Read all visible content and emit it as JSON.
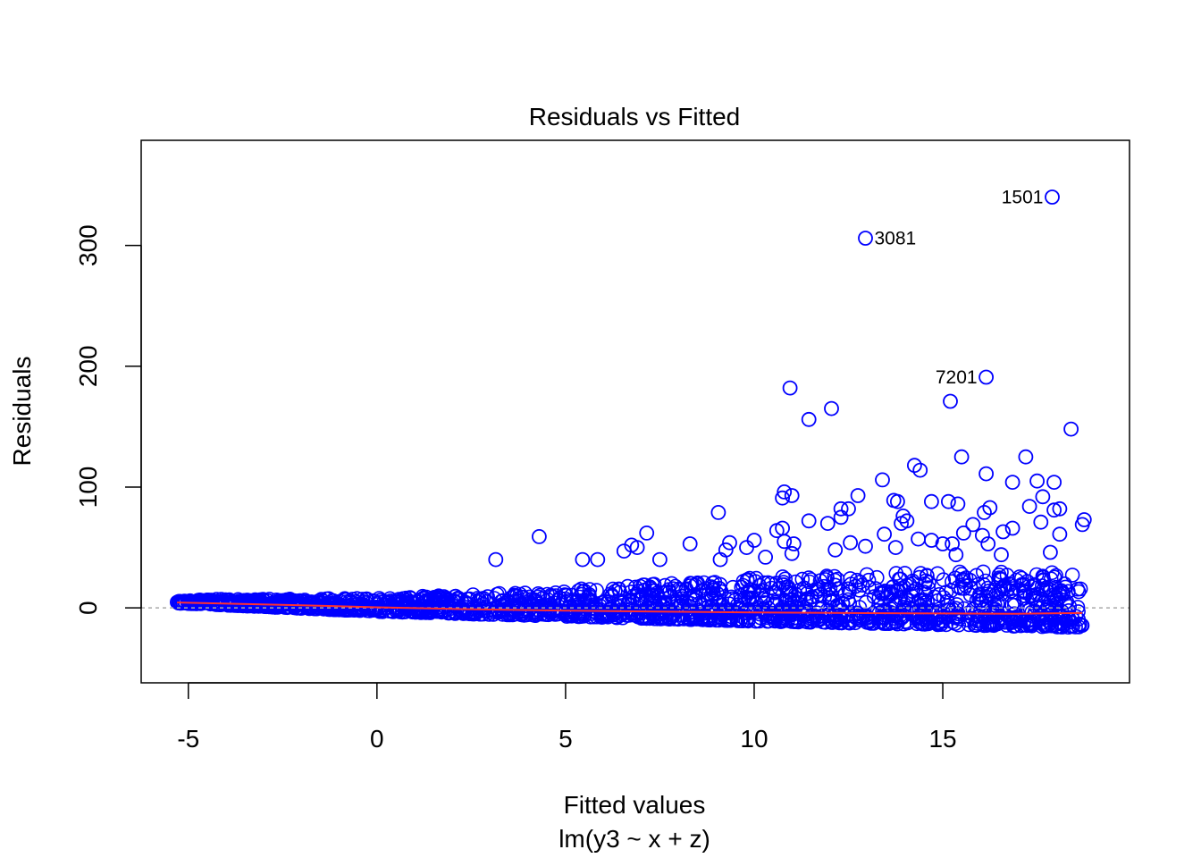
{
  "chart_data": {
    "type": "scatter",
    "title": "Residuals vs Fitted",
    "xlabel": "Fitted values",
    "subtitle": "lm(y3 ~ x + z)",
    "ylabel": "Residuals",
    "xlim": [
      -6.25,
      19.95
    ],
    "ylim": [
      -62,
      387
    ],
    "xticks": [
      -5,
      0,
      5,
      10,
      15
    ],
    "xtick_labels": [
      "-5",
      "0",
      "5",
      "10",
      "15"
    ],
    "yticks": [
      0,
      100,
      200,
      300
    ],
    "ytick_labels": [
      "0",
      "100",
      "200",
      "300"
    ],
    "point_color": "#0000ff",
    "smooth_color": "#ff3030",
    "zero_line_color": "#aaaaaa",
    "labeled_points": [
      {
        "label": "1501",
        "x": 17.9,
        "y": 340
      },
      {
        "label": "3081",
        "x": 12.95,
        "y": 306
      },
      {
        "label": "7201",
        "x": 16.15,
        "y": 191
      }
    ],
    "outliers": [
      {
        "x": 10.95,
        "y": 182
      },
      {
        "x": 15.2,
        "y": 171
      },
      {
        "x": 12.05,
        "y": 165
      },
      {
        "x": 11.45,
        "y": 156
      },
      {
        "x": 18.4,
        "y": 148
      },
      {
        "x": 17.2,
        "y": 125
      },
      {
        "x": 15.5,
        "y": 125
      },
      {
        "x": 14.25,
        "y": 118
      },
      {
        "x": 14.4,
        "y": 114
      },
      {
        "x": 16.15,
        "y": 111
      },
      {
        "x": 13.4,
        "y": 106
      },
      {
        "x": 17.5,
        "y": 105
      },
      {
        "x": 16.85,
        "y": 104
      },
      {
        "x": 17.95,
        "y": 104
      },
      {
        "x": 10.8,
        "y": 96
      },
      {
        "x": 11.0,
        "y": 93
      },
      {
        "x": 12.75,
        "y": 93
      },
      {
        "x": 10.75,
        "y": 91
      },
      {
        "x": 17.65,
        "y": 92
      },
      {
        "x": 13.7,
        "y": 89
      },
      {
        "x": 13.8,
        "y": 88
      },
      {
        "x": 15.15,
        "y": 88
      },
      {
        "x": 15.4,
        "y": 86
      },
      {
        "x": 14.7,
        "y": 88
      },
      {
        "x": 17.3,
        "y": 84
      },
      {
        "x": 16.25,
        "y": 83
      },
      {
        "x": 12.5,
        "y": 82
      },
      {
        "x": 12.3,
        "y": 82
      },
      {
        "x": 17.95,
        "y": 81
      },
      {
        "x": 18.1,
        "y": 82
      },
      {
        "x": 9.05,
        "y": 79
      },
      {
        "x": 16.1,
        "y": 79
      },
      {
        "x": 13.95,
        "y": 76
      },
      {
        "x": 12.3,
        "y": 75
      },
      {
        "x": 18.75,
        "y": 73
      },
      {
        "x": 11.45,
        "y": 72
      },
      {
        "x": 17.6,
        "y": 71
      },
      {
        "x": 18.7,
        "y": 69
      },
      {
        "x": 11.95,
        "y": 70
      },
      {
        "x": 14.05,
        "y": 72
      },
      {
        "x": 13.9,
        "y": 70
      },
      {
        "x": 15.8,
        "y": 69
      },
      {
        "x": 10.75,
        "y": 66
      },
      {
        "x": 10.6,
        "y": 64
      },
      {
        "x": 16.6,
        "y": 63
      },
      {
        "x": 16.85,
        "y": 66
      },
      {
        "x": 7.15,
        "y": 62
      },
      {
        "x": 16.05,
        "y": 60
      },
      {
        "x": 15.55,
        "y": 62
      },
      {
        "x": 14.35,
        "y": 57
      },
      {
        "x": 18.1,
        "y": 61
      },
      {
        "x": 4.3,
        "y": 59
      },
      {
        "x": 10.8,
        "y": 55
      },
      {
        "x": 13.45,
        "y": 61
      },
      {
        "x": 9.35,
        "y": 54
      },
      {
        "x": 10.0,
        "y": 56
      },
      {
        "x": 12.55,
        "y": 54
      },
      {
        "x": 15.0,
        "y": 53
      },
      {
        "x": 8.3,
        "y": 53
      },
      {
        "x": 6.75,
        "y": 52
      },
      {
        "x": 11.05,
        "y": 53
      },
      {
        "x": 12.95,
        "y": 51
      },
      {
        "x": 14.7,
        "y": 56
      },
      {
        "x": 6.55,
        "y": 47
      },
      {
        "x": 6.9,
        "y": 50
      },
      {
        "x": 9.8,
        "y": 50
      },
      {
        "x": 9.25,
        "y": 48
      },
      {
        "x": 12.15,
        "y": 48
      },
      {
        "x": 13.75,
        "y": 50
      },
      {
        "x": 15.25,
        "y": 53
      },
      {
        "x": 16.2,
        "y": 53
      },
      {
        "x": 17.85,
        "y": 46
      },
      {
        "x": 11.0,
        "y": 45
      },
      {
        "x": 9.1,
        "y": 40
      },
      {
        "x": 5.45,
        "y": 40
      },
      {
        "x": 5.85,
        "y": 40
      },
      {
        "x": 3.15,
        "y": 40
      },
      {
        "x": 7.5,
        "y": 40
      },
      {
        "x": 10.3,
        "y": 42
      },
      {
        "x": 15.35,
        "y": 44
      },
      {
        "x": 16.55,
        "y": 44
      }
    ],
    "smooth_line": [
      {
        "x": -5.3,
        "y": 4.5
      },
      {
        "x": -2,
        "y": 2.2
      },
      {
        "x": 0,
        "y": 0.5
      },
      {
        "x": 2,
        "y": -0.8
      },
      {
        "x": 5,
        "y": -2.2
      },
      {
        "x": 8,
        "y": -3.2
      },
      {
        "x": 10,
        "y": -3.8
      },
      {
        "x": 13,
        "y": -4.3
      },
      {
        "x": 15,
        "y": -4.6
      },
      {
        "x": 17,
        "y": -4.8
      },
      {
        "x": 18.7,
        "y": -4.2
      }
    ],
    "bulk_cloud": {
      "description_ref": "dense band of residuals around zero widening with fitted value",
      "x_range": [
        -5.3,
        18.7
      ],
      "lower_bound": [
        {
          "x": -5.3,
          "y": 4
        },
        {
          "x": 0,
          "y": -3
        },
        {
          "x": 5,
          "y": -7
        },
        {
          "x": 10,
          "y": -11
        },
        {
          "x": 15,
          "y": -14
        },
        {
          "x": 18.5,
          "y": -16
        }
      ],
      "upper_bound": [
        {
          "x": -5.3,
          "y": 7
        },
        {
          "x": 0,
          "y": 8
        },
        {
          "x": 5,
          "y": 15
        },
        {
          "x": 10,
          "y": 25
        },
        {
          "x": 15,
          "y": 30
        },
        {
          "x": 18.5,
          "y": 30
        }
      ]
    }
  }
}
